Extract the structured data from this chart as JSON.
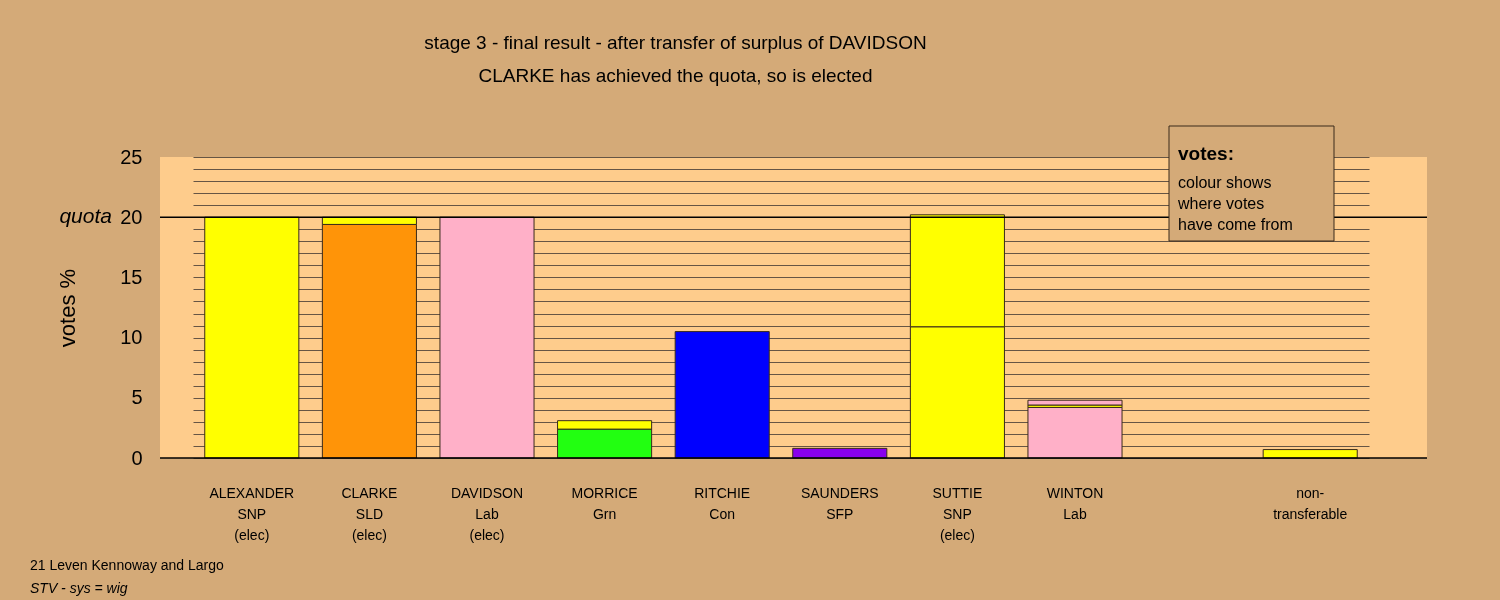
{
  "chart_data": {
    "type": "bar",
    "stacked": true,
    "title": "stage 3 - final result - after transfer of surplus of DAVIDSON",
    "subtitle": "CLARKE has achieved the quota, so is elected",
    "ylabel": "votes %",
    "categories": [
      "ALEXANDER\nSNP\n(elec)",
      "CLARKE\nSLD\n(elec)",
      "DAVIDSON\nLab\n(elec)",
      "MORRICE\nGrn",
      "RITCHIE\nCon",
      "SAUNDERS\nSFP",
      "SUTTIE\nSNP\n(elec)",
      "WINTON\nLab",
      null,
      "non-\ntransferable"
    ],
    "series": [
      {
        "values": [
          20,
          19.4,
          20,
          2.4,
          10.5,
          0.8,
          10.9,
          4.2,
          null,
          0.7
        ],
        "colors": [
          "#ffff00",
          "#ff9408",
          "#ffb0c8",
          "#22ff11",
          "#0000ff",
          "#8800ee",
          "#ffff00",
          "#ffb0c8",
          null,
          "#ffff00"
        ]
      },
      {
        "values": [
          null,
          0.6,
          null,
          0.7,
          null,
          null,
          9.3,
          0.2,
          null,
          null
        ],
        "colors": [
          null,
          "#ffff00",
          null,
          "#ffff00",
          null,
          null,
          "#ffff00",
          "#ffff00",
          null,
          null
        ]
      },
      {
        "values": [
          null,
          null,
          null,
          null,
          null,
          null,
          null,
          0.4,
          null,
          null
        ],
        "colors": [
          null,
          null,
          null,
          null,
          null,
          null,
          null,
          "#ffb0c8",
          null,
          null
        ]
      }
    ],
    "ylim": [
      0,
      25
    ],
    "yticks": [
      0,
      5,
      10,
      15,
      20,
      25
    ],
    "grid": true,
    "ref_lines": [
      {
        "axis": "y",
        "value": 20,
        "label": "quota",
        "color": "#000000"
      }
    ],
    "annotations": [
      "votes:",
      "colour shows\nwhere votes\nhave come from",
      "21 Leven Kennoway and Largo",
      "STV - sys = wig"
    ]
  }
}
